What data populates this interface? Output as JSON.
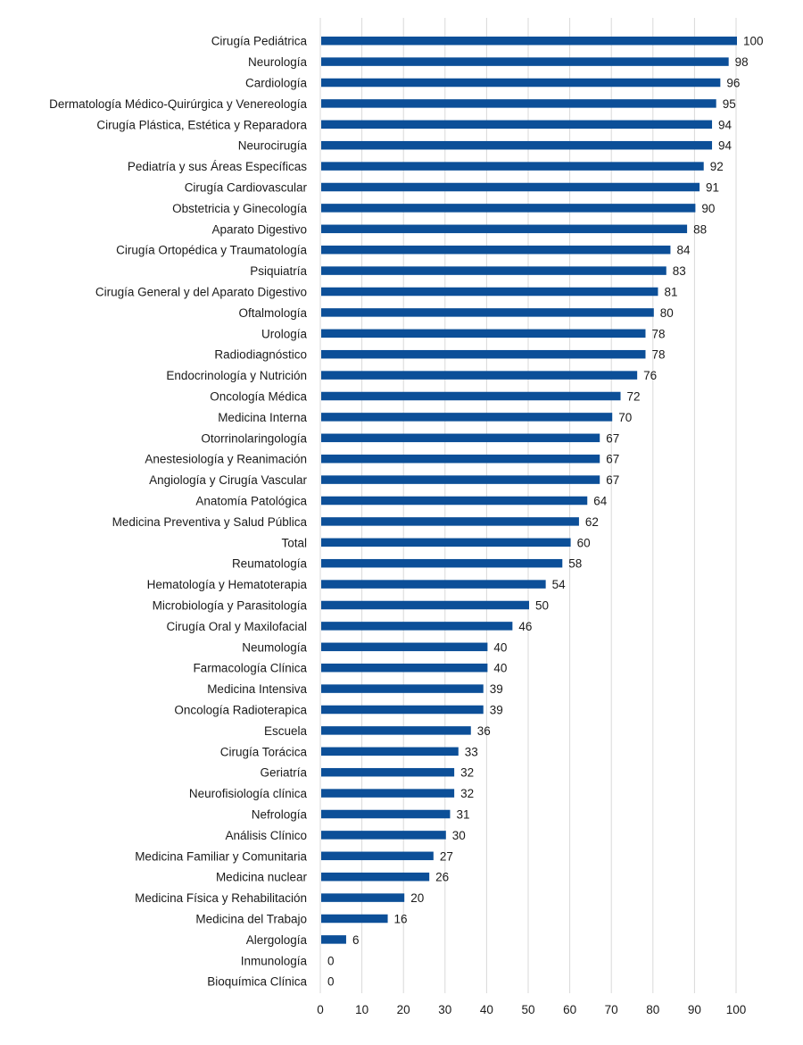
{
  "chart_data": {
    "type": "bar",
    "orientation": "horizontal",
    "title": "",
    "xlabel": "",
    "ylabel": "",
    "xlim": [
      0,
      100
    ],
    "grid": true,
    "bar_color": "#0c4f98",
    "x_ticks": [
      "0",
      "10",
      "20",
      "30",
      "40",
      "50",
      "60",
      "70",
      "80",
      "90",
      "100"
    ],
    "categories": [
      "Cirugía Pediátrica",
      "Neurología",
      "Cardiología",
      "Dermatología Médico-Quirúrgica y Venereología",
      "Cirugía Plástica, Estética y Reparadora",
      "Neurocirugía",
      "Pediatría y sus Áreas Específicas",
      "Cirugía Cardiovascular",
      "Obstetricia y Ginecología",
      "Aparato Digestivo",
      "Cirugía Ortopédica y Traumatología",
      "Psiquiatría",
      "Cirugía General y del Aparato Digestivo",
      "Oftalmología",
      "Urología",
      "Radiodiagnóstico",
      "Endocrinología y Nutrición",
      "Oncología Médica",
      "Medicina Interna",
      "Otorrinolaringología",
      "Anestesiología y Reanimación",
      "Angiología y Cirugía Vascular",
      "Anatomía Patológica",
      "Medicina Preventiva y Salud Pública",
      "Total",
      "Reumatología",
      "Hematología y Hematoterapia",
      "Microbiología y Parasitología",
      "Cirugía Oral y Maxilofacial",
      "Neumología",
      "Farmacología Clínica",
      "Medicina Intensiva",
      "Oncología Radioterapica",
      "Escuela",
      "Cirugía Torácica",
      "Geriatría",
      "Neurofisiología clínica",
      "Nefrología",
      "Análisis Clínico",
      "Medicina Familiar y Comunitaria",
      "Medicina nuclear",
      "Medicina Física y Rehabilitación",
      "Medicina del Trabajo",
      "Alergología",
      "Inmunología",
      "Bioquímica Clínica"
    ],
    "values": [
      100,
      98,
      96,
      95,
      94,
      94,
      92,
      91,
      90,
      88,
      84,
      83,
      81,
      80,
      78,
      78,
      76,
      72,
      70,
      67,
      67,
      67,
      64,
      62,
      60,
      58,
      54,
      50,
      46,
      40,
      40,
      39,
      39,
      36,
      33,
      32,
      32,
      31,
      30,
      27,
      26,
      20,
      16,
      6,
      0,
      0
    ]
  }
}
